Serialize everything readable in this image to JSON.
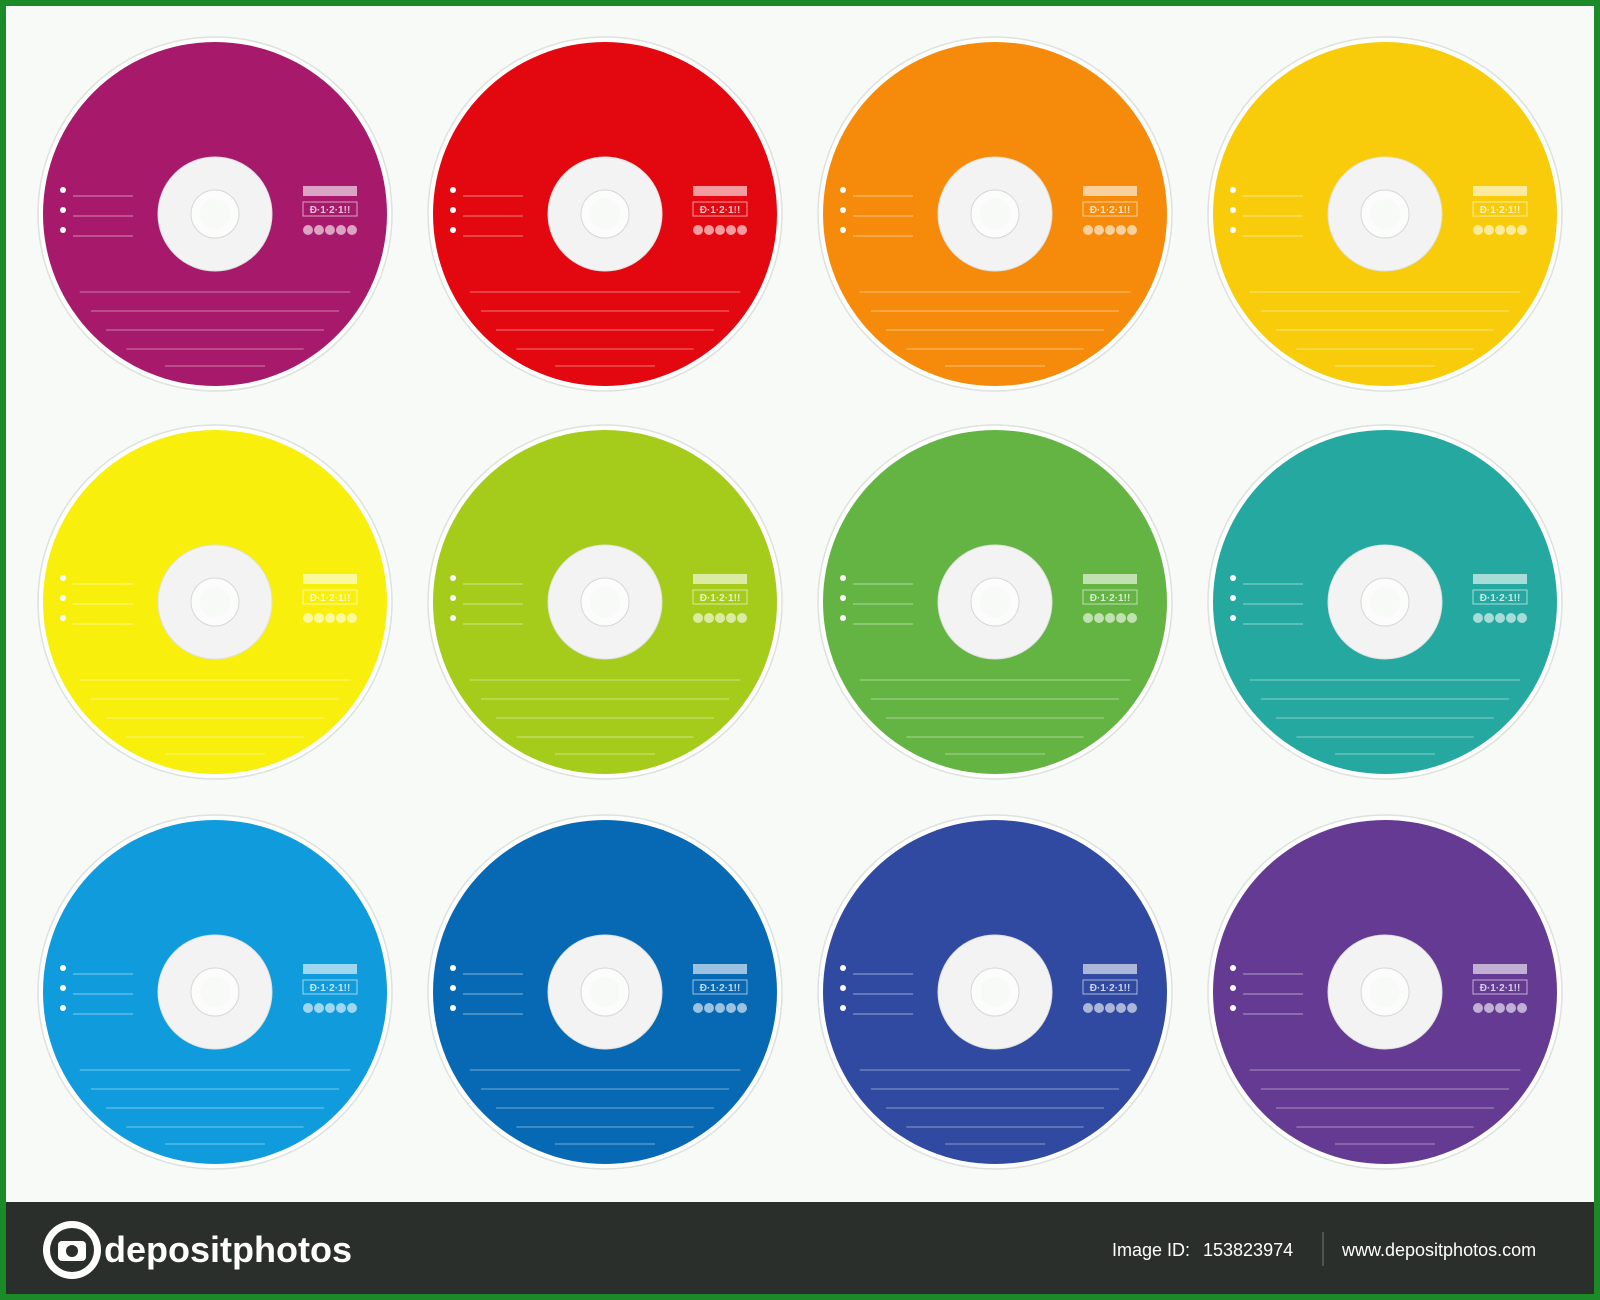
{
  "discs": [
    {
      "color": "#a6196b"
    },
    {
      "color": "#e3070f"
    },
    {
      "color": "#f68b0b"
    },
    {
      "color": "#f8cc0a"
    },
    {
      "color": "#f8ef0c"
    },
    {
      "color": "#a5cc1b"
    },
    {
      "color": "#64b443"
    },
    {
      "color": "#24a8a0"
    },
    {
      "color": "#0f9bdc"
    },
    {
      "color": "#0769b3"
    },
    {
      "color": "#2f4aa0"
    },
    {
      "color": "#643a92"
    }
  ],
  "disc_mark": "Đ·1·2·1!!",
  "footer": {
    "brand": "depositphotos",
    "image_id_label": "Image ID:",
    "image_id": "153823974",
    "website": "www.depositphotos.com"
  }
}
